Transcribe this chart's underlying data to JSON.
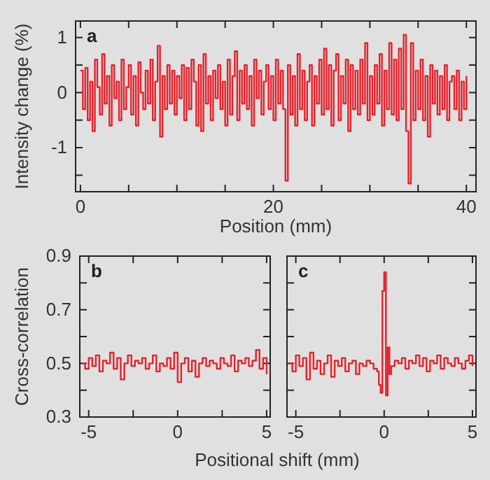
{
  "chart_data": [
    {
      "type": "step",
      "title": "a",
      "xlabel": "Position (mm)",
      "ylabel": "Intensity change (%)",
      "xlim": [
        -0.5,
        41
      ],
      "ylim": [
        -1.8,
        1.3
      ],
      "xticks": [
        0,
        {
          "value": 5,
          "label": null
        },
        {
          "value": 10,
          "label": null
        },
        {
          "value": 15,
          "label": null
        },
        20,
        {
          "value": 25,
          "label": null
        },
        {
          "value": 30,
          "label": null
        },
        {
          "value": 35,
          "label": null
        },
        40
      ],
      "yticks": [
        1,
        {
          "value": 0.5,
          "label": null
        },
        0,
        {
          "value": -0.5,
          "label": null
        },
        -1,
        {
          "value": -1.5,
          "label": null
        }
      ],
      "grid": false,
      "x": [
        0,
        0.25,
        0.5,
        0.75,
        1,
        1.25,
        1.5,
        1.75,
        2,
        2.25,
        2.5,
        2.75,
        3,
        3.25,
        3.5,
        3.75,
        4,
        4.25,
        4.5,
        4.75,
        5,
        5.25,
        5.5,
        5.75,
        6,
        6.25,
        6.5,
        6.75,
        7,
        7.25,
        7.5,
        7.75,
        8,
        8.25,
        8.5,
        8.75,
        9,
        9.25,
        9.5,
        9.75,
        10,
        10.25,
        10.5,
        10.75,
        11,
        11.25,
        11.5,
        11.75,
        12,
        12.25,
        12.5,
        12.75,
        13,
        13.25,
        13.5,
        13.75,
        14,
        14.25,
        14.5,
        14.75,
        15,
        15.25,
        15.5,
        15.75,
        16,
        16.25,
        16.5,
        16.75,
        17,
        17.25,
        17.5,
        17.75,
        18,
        18.25,
        18.5,
        18.75,
        19,
        19.25,
        19.5,
        19.75,
        20,
        20.25,
        20.5,
        20.75,
        21,
        21.25,
        21.5,
        21.75,
        22,
        22.25,
        22.5,
        22.75,
        23,
        23.25,
        23.5,
        23.75,
        24,
        24.25,
        24.5,
        24.75,
        25,
        25.25,
        25.5,
        25.75,
        26,
        26.25,
        26.5,
        26.75,
        27,
        27.25,
        27.5,
        27.75,
        28,
        28.25,
        28.5,
        28.75,
        29,
        29.25,
        29.5,
        29.75,
        30,
        30.25,
        30.5,
        30.75,
        31,
        31.25,
        31.5,
        31.75,
        32,
        32.25,
        32.5,
        32.75,
        33,
        33.25,
        33.5,
        33.75,
        34,
        34.25,
        34.5,
        34.75,
        35,
        35.25,
        35.5,
        35.75,
        36,
        36.25,
        36.5,
        36.75,
        37,
        37.25,
        37.5,
        37.75,
        38,
        38.25,
        38.5,
        38.75,
        39,
        39.25,
        39.5,
        39.75,
        40
      ],
      "series": [
        {
          "color": "#e3222b",
          "values": [
            0.4,
            -0.3,
            0.45,
            -0.5,
            0.2,
            -0.7,
            0.6,
            0.1,
            -0.4,
            0.7,
            -0.2,
            0.3,
            -0.6,
            0.5,
            -0.1,
            0.2,
            -0.5,
            0.6,
            -0.3,
            0.1,
            0.5,
            -0.4,
            0.3,
            -0.6,
            0.55,
            0.0,
            -0.3,
            0.4,
            -0.2,
            0.6,
            -0.5,
            0.2,
            0.85,
            -0.8,
            0.3,
            -0.3,
            0.5,
            -0.2,
            0.4,
            -0.4,
            0.3,
            -0.1,
            0.5,
            -0.5,
            0.45,
            -0.3,
            0.6,
            0.2,
            -0.6,
            0.5,
            -0.7,
            0.7,
            -0.2,
            0.3,
            -0.5,
            0.4,
            -0.1,
            0.5,
            -0.3,
            0.2,
            -0.6,
            0.6,
            -0.4,
            0.3,
            0.75,
            -0.5,
            0.4,
            -0.2,
            0.5,
            -0.3,
            0.3,
            -0.6,
            0.6,
            -0.1,
            0.4,
            -0.4,
            0.2,
            0.5,
            -0.3,
            0.3,
            -0.5,
            0.6,
            -0.2,
            0.4,
            -0.3,
            -1.6,
            0.5,
            -0.4,
            0.3,
            -0.6,
            0.7,
            -0.3,
            0.4,
            -0.5,
            0.2,
            0.5,
            -0.6,
            0.3,
            -0.2,
            0.6,
            -0.4,
            0.8,
            -0.3,
            0.5,
            -0.6,
            0.4,
            0.7,
            -0.5,
            0.3,
            -0.2,
            0.6,
            -0.7,
            0.5,
            -0.3,
            0.4,
            -0.4,
            0.6,
            -0.2,
            0.9,
            -0.5,
            0.3,
            -0.4,
            0.5,
            -0.2,
            0.7,
            -0.6,
            0.4,
            -0.3,
            0.9,
            -0.4,
            0.6,
            -0.5,
            0.8,
            -0.3,
            1.05,
            -0.7,
            -1.65,
            0.9,
            -0.5,
            0.4,
            -0.3,
            0.6,
            -0.5,
            0.3,
            -0.8,
            0.5,
            -0.2,
            0.4,
            -0.4,
            0.3,
            -0.3,
            0.5,
            -0.5,
            0.2,
            0.3,
            -0.3,
            0.4,
            -0.5,
            0.2,
            -0.3,
            0.3
          ]
        }
      ]
    },
    {
      "type": "step",
      "title": "b",
      "xlabel": "Positional shift (mm)",
      "ylabel": "Cross-correlation",
      "xlim": [
        -5.5,
        5.2
      ],
      "ylim": [
        0.3,
        0.9
      ],
      "xticks": [
        -5,
        {
          "value": -2.5,
          "label": null
        },
        0,
        {
          "value": 2.5,
          "label": null
        },
        5
      ],
      "yticks": [
        0.3,
        {
          "value": 0.4,
          "label": null
        },
        0.5,
        {
          "value": 0.6,
          "label": null
        },
        0.7,
        {
          "value": 0.8,
          "label": null
        },
        0.9
      ],
      "grid": false,
      "x": [
        -5.4,
        -5.2,
        -5,
        -4.8,
        -4.6,
        -4.4,
        -4.2,
        -4,
        -3.8,
        -3.6,
        -3.4,
        -3.2,
        -3,
        -2.8,
        -2.6,
        -2.4,
        -2.2,
        -2,
        -1.8,
        -1.6,
        -1.4,
        -1.2,
        -1,
        -0.8,
        -0.6,
        -0.4,
        -0.2,
        0,
        0.2,
        0.4,
        0.6,
        0.8,
        1,
        1.2,
        1.4,
        1.6,
        1.8,
        2,
        2.2,
        2.4,
        2.6,
        2.8,
        3,
        3.2,
        3.4,
        3.6,
        3.8,
        4,
        4.2,
        4.4,
        4.6,
        4.8,
        5
      ],
      "series": [
        {
          "color": "#e3222b",
          "values": [
            0.5,
            0.48,
            0.52,
            0.49,
            0.53,
            0.47,
            0.51,
            0.5,
            0.54,
            0.48,
            0.52,
            0.44,
            0.5,
            0.53,
            0.49,
            0.51,
            0.5,
            0.52,
            0.48,
            0.5,
            0.53,
            0.47,
            0.5,
            0.49,
            0.52,
            0.48,
            0.54,
            0.43,
            0.5,
            0.52,
            0.47,
            0.51,
            0.45,
            0.5,
            0.52,
            0.49,
            0.51,
            0.5,
            0.48,
            0.52,
            0.5,
            0.49,
            0.53,
            0.47,
            0.51,
            0.5,
            0.52,
            0.49,
            0.51,
            0.55,
            0.48,
            0.52,
            0.46
          ]
        }
      ]
    },
    {
      "type": "step",
      "title": "c",
      "xlim": [
        -5.5,
        5.2
      ],
      "ylim": [
        0.3,
        0.9
      ],
      "tick_labels": "x",
      "xticks": [
        -5,
        {
          "value": -2.5,
          "label": null
        },
        0,
        {
          "value": 2.5,
          "label": null
        },
        5
      ],
      "yticks": [
        0.3,
        {
          "value": 0.4,
          "label": null
        },
        0.5,
        {
          "value": 0.6,
          "label": null
        },
        0.7,
        {
          "value": 0.8,
          "label": null
        },
        0.9
      ],
      "grid": false,
      "x": [
        -5.4,
        -5.2,
        -5,
        -4.8,
        -4.6,
        -4.4,
        -4.2,
        -4,
        -3.8,
        -3.6,
        -3.4,
        -3.2,
        -3,
        -2.8,
        -2.6,
        -2.4,
        -2.2,
        -2,
        -1.8,
        -1.6,
        -1.4,
        -1.2,
        -1,
        -0.8,
        -0.6,
        -0.4,
        -0.3,
        -0.2,
        -0.1,
        0,
        0.1,
        0.2,
        0.3,
        0.4,
        0.6,
        0.8,
        1,
        1.2,
        1.4,
        1.6,
        1.8,
        2,
        2.2,
        2.4,
        2.6,
        2.8,
        3,
        3.2,
        3.4,
        3.6,
        3.8,
        4,
        4.2,
        4.4,
        4.6,
        4.8,
        5
      ],
      "series": [
        {
          "color": "#e3222b",
          "values": [
            0.5,
            0.47,
            0.53,
            0.49,
            0.52,
            0.44,
            0.54,
            0.48,
            0.51,
            0.46,
            0.5,
            0.53,
            0.45,
            0.51,
            0.49,
            0.52,
            0.47,
            0.5,
            0.51,
            0.46,
            0.5,
            0.49,
            0.51,
            0.5,
            0.48,
            0.47,
            0.42,
            0.39,
            0.77,
            0.84,
            0.38,
            0.56,
            0.46,
            0.49,
            0.51,
            0.5,
            0.52,
            0.48,
            0.51,
            0.5,
            0.53,
            0.49,
            0.52,
            0.47,
            0.51,
            0.5,
            0.53,
            0.48,
            0.52,
            0.5,
            0.49,
            0.52,
            0.5,
            0.48,
            0.51,
            0.53,
            0.49
          ]
        }
      ]
    }
  ]
}
